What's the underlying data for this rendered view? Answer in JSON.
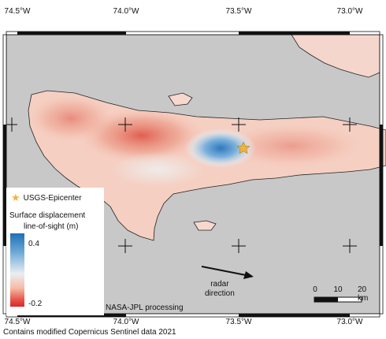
{
  "top_labels": [
    "74.5°W",
    "74.0°W",
    "73.5°W",
    "73.0°W"
  ],
  "bottom_labels": [
    "74.5°W",
    "74.0°W",
    "73.5°W",
    "73.0°W"
  ],
  "legend": {
    "epicenter_label": "USGS-Epicenter",
    "title_line1": "Surface displacement",
    "title_line2": "line-of-sight (m)",
    "max_value": "0.4",
    "min_value": "-0.2",
    "colors": [
      "#1f6fb5",
      "#eaeef2",
      "#d7262b"
    ]
  },
  "processing": "NASA-JPL processing",
  "radar": {
    "line1": "radar",
    "line2": "direction"
  },
  "scale": {
    "zero": "0",
    "ten": "10",
    "twenty": "20 km"
  },
  "credit": "Contains modified Copernicus Sentinel data 2021"
}
